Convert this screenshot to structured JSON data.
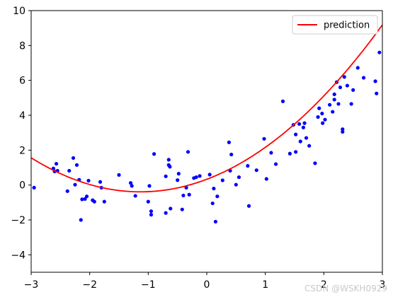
{
  "chart_data": {
    "type": "scatter",
    "title": "",
    "xlabel": "",
    "ylabel": "",
    "xlim": [
      -3,
      3
    ],
    "ylim": [
      -5,
      10
    ],
    "xticks": [
      -3,
      -2,
      -1,
      0,
      1,
      2,
      3
    ],
    "xtick_labels": [
      "−3",
      "−2",
      "−1",
      "0",
      "1",
      "2",
      "3"
    ],
    "yticks": [
      -4,
      -2,
      0,
      2,
      4,
      6,
      8,
      10
    ],
    "ytick_labels": [
      "−4",
      "−2",
      "0",
      "2",
      "4",
      "6",
      "8",
      "10"
    ],
    "grid": false,
    "legend_position": "top-right",
    "series": [
      {
        "type": "scatter",
        "color": "#0000ff",
        "points": [
          [
            -2.95,
            -0.15
          ],
          [
            -2.62,
            0.95
          ],
          [
            -2.6,
            0.78
          ],
          [
            -2.57,
            1.22
          ],
          [
            -2.55,
            0.82
          ],
          [
            -2.38,
            -0.35
          ],
          [
            -2.35,
            0.82
          ],
          [
            -2.28,
            1.55
          ],
          [
            -2.25,
            0.02
          ],
          [
            -2.22,
            1.15
          ],
          [
            -2.18,
            0.3
          ],
          [
            -2.15,
            -2.0
          ],
          [
            -2.13,
            -0.82
          ],
          [
            -2.08,
            -0.8
          ],
          [
            -2.05,
            -0.65
          ],
          [
            -2.02,
            0.25
          ],
          [
            -1.95,
            -0.87
          ],
          [
            -1.92,
            -0.95
          ],
          [
            -1.82,
            0.18
          ],
          [
            -1.8,
            -0.15
          ],
          [
            -1.75,
            -0.95
          ],
          [
            -1.5,
            0.58
          ],
          [
            -1.3,
            0.12
          ],
          [
            -1.28,
            -0.05
          ],
          [
            -1.22,
            -0.62
          ],
          [
            -1.0,
            -0.95
          ],
          [
            -0.98,
            -0.05
          ],
          [
            -0.95,
            -1.5
          ],
          [
            -0.95,
            -1.7
          ],
          [
            -0.9,
            1.78
          ],
          [
            -0.7,
            0.5
          ],
          [
            -0.7,
            -1.6
          ],
          [
            -0.65,
            1.45
          ],
          [
            -0.65,
            1.15
          ],
          [
            -0.63,
            1.05
          ],
          [
            -0.62,
            -1.35
          ],
          [
            -0.5,
            0.28
          ],
          [
            -0.48,
            0.65
          ],
          [
            -0.42,
            -1.4
          ],
          [
            -0.4,
            -0.6
          ],
          [
            -0.35,
            -0.15
          ],
          [
            -0.32,
            1.9
          ],
          [
            -0.3,
            -0.55
          ],
          [
            -0.22,
            0.4
          ],
          [
            -0.18,
            0.45
          ],
          [
            -0.12,
            0.52
          ],
          [
            0.05,
            0.6
          ],
          [
            0.1,
            -1.05
          ],
          [
            0.12,
            -0.2
          ],
          [
            0.15,
            -2.1
          ],
          [
            0.18,
            -0.65
          ],
          [
            0.27,
            0.27
          ],
          [
            0.38,
            2.45
          ],
          [
            0.4,
            0.82
          ],
          [
            0.42,
            1.75
          ],
          [
            0.5,
            0.02
          ],
          [
            0.55,
            0.45
          ],
          [
            0.7,
            1.1
          ],
          [
            0.72,
            -1.2
          ],
          [
            0.85,
            0.85
          ],
          [
            0.98,
            2.65
          ],
          [
            1.02,
            0.35
          ],
          [
            1.1,
            1.85
          ],
          [
            1.18,
            1.2
          ],
          [
            1.3,
            4.8
          ],
          [
            1.42,
            1.8
          ],
          [
            1.48,
            3.45
          ],
          [
            1.52,
            2.9
          ],
          [
            1.52,
            1.9
          ],
          [
            1.58,
            3.5
          ],
          [
            1.6,
            2.5
          ],
          [
            1.65,
            3.3
          ],
          [
            1.67,
            3.55
          ],
          [
            1.7,
            2.7
          ],
          [
            1.75,
            2.25
          ],
          [
            1.85,
            1.25
          ],
          [
            1.9,
            3.9
          ],
          [
            1.92,
            4.4
          ],
          [
            1.97,
            4.1
          ],
          [
            1.98,
            3.55
          ],
          [
            2.02,
            3.75
          ],
          [
            2.1,
            4.6
          ],
          [
            2.15,
            4.2
          ],
          [
            2.18,
            4.9
          ],
          [
            2.18,
            5.2
          ],
          [
            2.22,
            5.9
          ],
          [
            2.25,
            4.65
          ],
          [
            2.28,
            5.6
          ],
          [
            2.32,
            3.05
          ],
          [
            2.32,
            3.2
          ],
          [
            2.35,
            6.2
          ],
          [
            2.4,
            5.7
          ],
          [
            2.47,
            4.65
          ],
          [
            2.5,
            5.45
          ],
          [
            2.58,
            6.72
          ],
          [
            2.68,
            6.15
          ],
          [
            2.88,
            5.95
          ],
          [
            2.9,
            5.25
          ],
          [
            2.95,
            7.6
          ]
        ]
      },
      {
        "type": "line",
        "name": "prediction",
        "color": "#ff0000",
        "equation": "y = 0.56x^2 + 1.27x + 0.33"
      }
    ]
  },
  "watermark": "CSDN @WSKH0929"
}
